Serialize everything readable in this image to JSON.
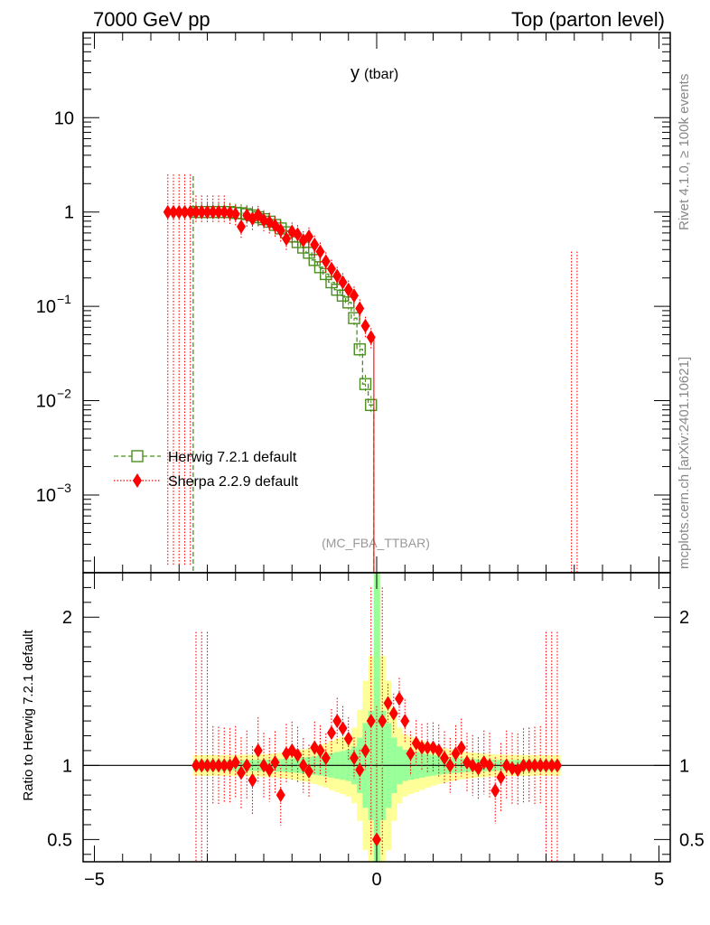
{
  "header": {
    "left_title": "7000 GeV pp",
    "right_title": "Top (parton level)"
  },
  "side_text": {
    "rivet": "Rivet 4.1.0, ≥ 100k events",
    "mcplots": "mcplots.cern.ch [arXiv:2401.10621]"
  },
  "colors": {
    "herwig": "#4a8f1f",
    "sherpa": "#ff0000",
    "band_inner": "#99ff99",
    "band_outer": "#ffff99"
  },
  "chart_data": [
    {
      "type": "line",
      "title": "y",
      "title_suffix": "(tbar)",
      "analysis_label": "(MC_FBA_TTBAR)",
      "xlim": [
        -5.2,
        5.2
      ],
      "ylim_log": [
        0.00015,
        80
      ],
      "y_scale": "log",
      "y_ticks": [
        {
          "value": 10,
          "label": "10"
        },
        {
          "value": 1,
          "label": "1"
        },
        {
          "value": 0.1,
          "label": "10",
          "exp": "−1"
        },
        {
          "value": 0.01,
          "label": "10",
          "exp": "−2"
        },
        {
          "value": 0.001,
          "label": "10",
          "exp": "−3"
        }
      ],
      "legend_position": "middle-left",
      "series": [
        {
          "name": "Herwig 7.2.1 default",
          "style": "dashed-step-open-square",
          "x": [
            -3.2,
            -3.1,
            -3.0,
            -2.9,
            -2.8,
            -2.7,
            -2.6,
            -2.5,
            -2.4,
            -2.3,
            -2.2,
            -2.1,
            -2.0,
            -1.9,
            -1.8,
            -1.7,
            -1.6,
            -1.5,
            -1.4,
            -1.3,
            -1.2,
            -1.1,
            -1.0,
            -0.9,
            -0.8,
            -0.7,
            -0.6,
            -0.5,
            -0.4,
            -0.3,
            -0.2,
            -0.1,
            0.0
          ],
          "values": [
            1.0,
            1.0,
            1.0,
            1.0,
            1.0,
            1.0,
            1.0,
            0.98,
            0.97,
            0.95,
            0.92,
            0.88,
            0.84,
            0.79,
            0.73,
            0.67,
            0.61,
            0.55,
            0.48,
            0.42,
            0.37,
            0.31,
            0.26,
            0.22,
            0.18,
            0.15,
            0.13,
            0.11,
            0.075,
            0.035,
            0.015,
            0.009,
            0.00014
          ]
        },
        {
          "name": "Sherpa 2.2.9 default",
          "style": "dotted-diamond",
          "x": [
            -3.7,
            -3.6,
            -3.5,
            -3.4,
            -3.3,
            -3.2,
            -3.1,
            -3.0,
            -2.9,
            -2.8,
            -2.7,
            -2.6,
            -2.5,
            -2.4,
            -2.3,
            -2.2,
            -2.1,
            -2.0,
            -1.9,
            -1.8,
            -1.7,
            -1.6,
            -1.5,
            -1.4,
            -1.3,
            -1.2,
            -1.1,
            -1.0,
            -0.9,
            -0.8,
            -0.7,
            -0.6,
            -0.5,
            -0.4,
            -0.3,
            -0.2,
            -0.1
          ],
          "values": [
            1.0,
            1.0,
            1.0,
            1.0,
            1.0,
            1.0,
            1.0,
            1.0,
            1.0,
            1.0,
            1.0,
            0.98,
            0.95,
            0.7,
            0.92,
            0.85,
            0.93,
            0.82,
            0.78,
            0.72,
            0.64,
            0.52,
            0.62,
            0.58,
            0.5,
            0.55,
            0.45,
            0.38,
            0.3,
            0.25,
            0.21,
            0.18,
            0.15,
            0.13,
            0.095,
            0.062,
            0.047
          ]
        }
      ]
    },
    {
      "type": "line",
      "ylabel": "Ratio to Herwig 7.2.1 default",
      "xlim": [
        -5.2,
        5.2
      ],
      "ylim": [
        0.35,
        2.3
      ],
      "y_ticks": [
        {
          "value": 2,
          "label": "2"
        },
        {
          "value": 1,
          "label": "1"
        },
        {
          "value": 0.5,
          "label": "0.5"
        }
      ],
      "x_ticks": [
        {
          "value": -5,
          "label": "−5"
        },
        {
          "value": 0,
          "label": "0"
        },
        {
          "value": 5,
          "label": "5"
        }
      ],
      "reference": 1,
      "sherpa_ratio": {
        "x": [
          -3.2,
          -3.1,
          -3.0,
          -2.9,
          -2.8,
          -2.7,
          -2.6,
          -2.5,
          -2.4,
          -2.3,
          -2.2,
          -2.1,
          -2.0,
          -1.9,
          -1.8,
          -1.7,
          -1.6,
          -1.5,
          -1.4,
          -1.3,
          -1.2,
          -1.1,
          -1.0,
          -0.9,
          -0.8,
          -0.7,
          -0.6,
          -0.5,
          -0.4,
          -0.3,
          -0.2,
          -0.1,
          0.0,
          0.1,
          0.2,
          0.3,
          0.4,
          0.5,
          0.6,
          0.7,
          0.8,
          0.9,
          1.0,
          1.1,
          1.2,
          1.3,
          1.4,
          1.5,
          1.6,
          1.7,
          1.8,
          1.9,
          2.0,
          2.1,
          2.2,
          2.3,
          2.4,
          2.5,
          2.6,
          2.7,
          2.8,
          2.9,
          3.0,
          3.1,
          3.2
        ],
        "values": [
          1.0,
          1.0,
          1.0,
          1.0,
          1.0,
          1.0,
          1.0,
          1.02,
          0.95,
          1.0,
          0.9,
          1.1,
          1.0,
          0.97,
          1.02,
          0.8,
          1.08,
          1.1,
          1.07,
          1.0,
          0.96,
          1.12,
          1.1,
          1.05,
          1.22,
          1.3,
          1.25,
          1.18,
          1.05,
          0.97,
          1.1,
          1.3,
          0.5,
          1.3,
          1.42,
          1.35,
          1.45,
          1.3,
          1.08,
          1.15,
          1.12,
          1.12,
          1.12,
          1.1,
          1.05,
          1.0,
          1.08,
          1.12,
          1.02,
          1.0,
          0.98,
          1.02,
          1.0,
          0.83,
          0.92,
          1.0,
          0.98,
          0.97,
          1.0,
          1.0,
          1.0,
          1.0,
          1.0,
          1.0,
          1.0
        ]
      }
    }
  ]
}
